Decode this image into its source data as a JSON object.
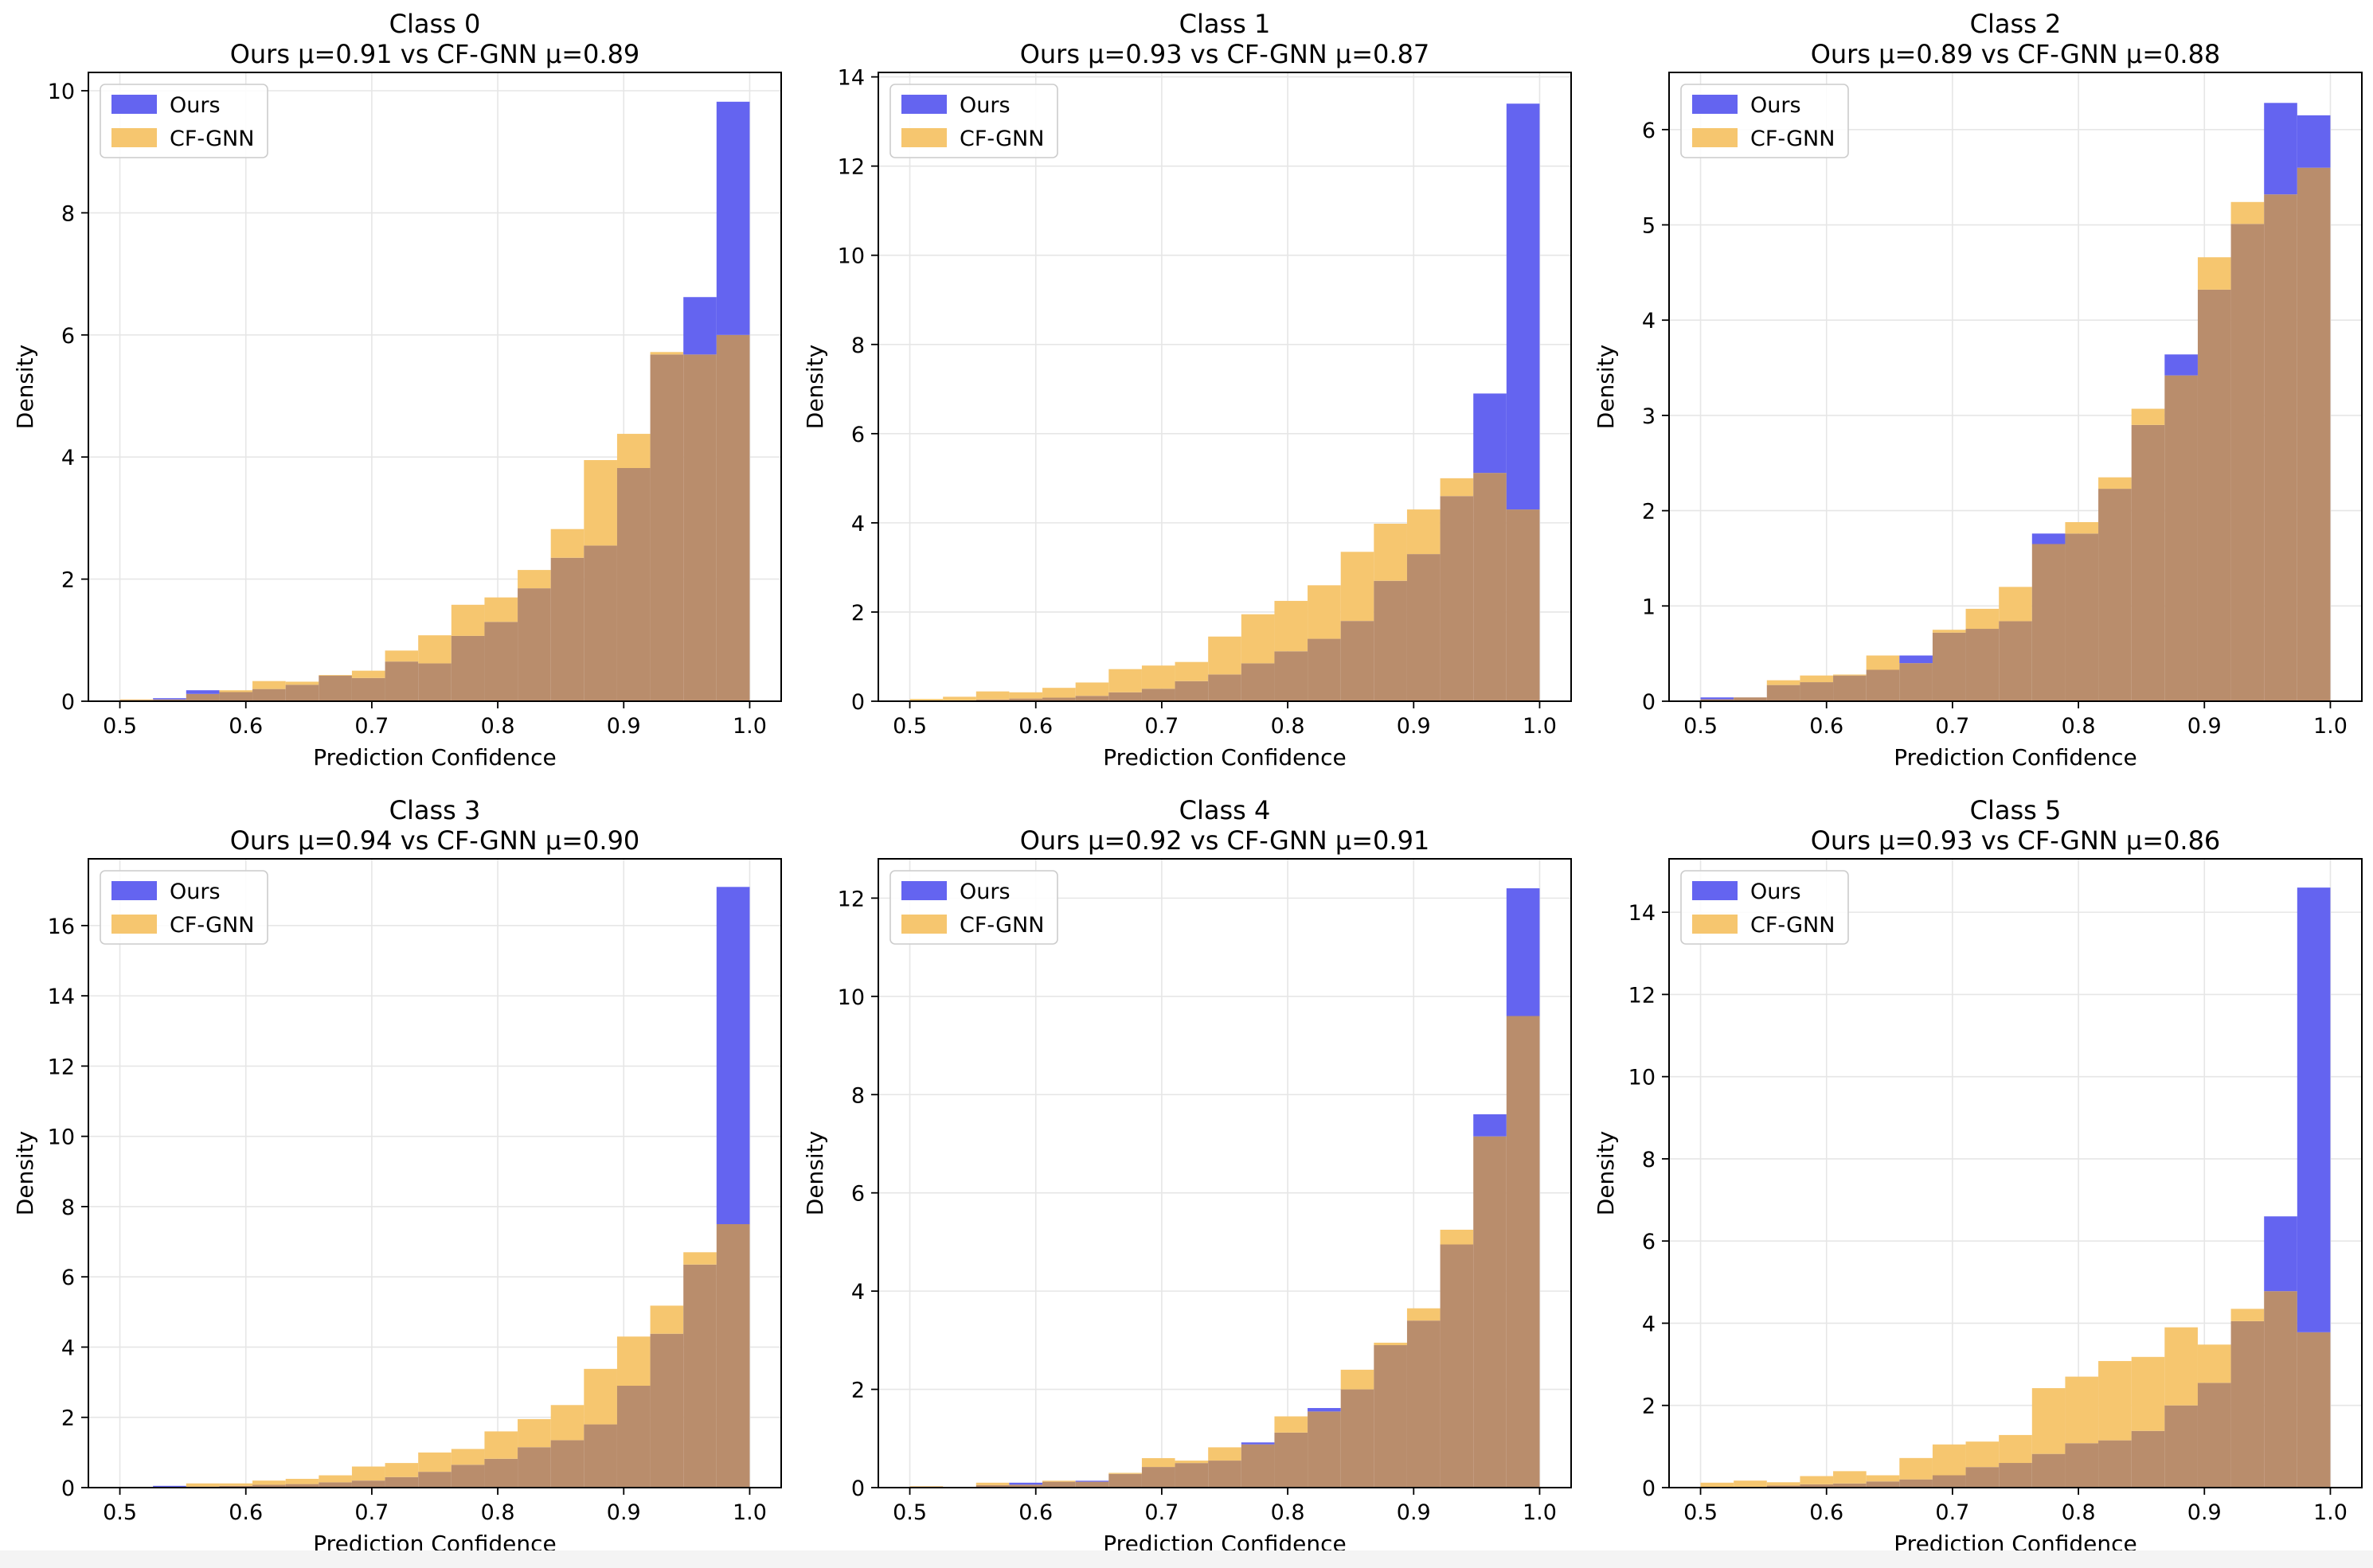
{
  "colors": {
    "ours": "#6464f0",
    "cfgnn": "#f6c66f",
    "overlap": "#b98d6c",
    "grid": "#e6e6e6"
  },
  "chart_data": [
    {
      "type": "bar",
      "title": "Class 0",
      "subtitle": "Ours μ=0.91 vs CF-GNN μ=0.89",
      "xlabel": "Prediction Confidence",
      "ylabel": "Density",
      "xlim": [
        0.475,
        1.025
      ],
      "ylim": [
        0,
        10.3
      ],
      "xticks": [
        "0.5",
        "0.6",
        "0.7",
        "0.8",
        "0.9",
        "1.0"
      ],
      "yticks": [
        "0",
        "2",
        "4",
        "6",
        "8",
        "10"
      ],
      "grid": true,
      "legend_position": "top-left",
      "bin_start": 0.5,
      "bin_width": 0.026316,
      "series": [
        {
          "name": "Ours",
          "values": [
            0.02,
            0.05,
            0.18,
            0.15,
            0.2,
            0.27,
            0.42,
            0.38,
            0.65,
            0.62,
            1.07,
            1.3,
            1.85,
            2.35,
            2.55,
            3.82,
            5.68,
            6.62,
            9.82
          ]
        },
        {
          "name": "CF-GNN",
          "values": [
            0.03,
            0.03,
            0.12,
            0.18,
            0.33,
            0.32,
            0.43,
            0.5,
            0.83,
            1.08,
            1.58,
            1.7,
            2.15,
            2.82,
            3.95,
            4.38,
            5.72,
            5.68,
            6.0
          ]
        }
      ]
    },
    {
      "type": "bar",
      "title": "Class 1",
      "subtitle": "Ours μ=0.93 vs CF-GNN μ=0.87",
      "xlabel": "Prediction Confidence",
      "ylabel": "Density",
      "xlim": [
        0.475,
        1.025
      ],
      "ylim": [
        0,
        14.1
      ],
      "xticks": [
        "0.5",
        "0.6",
        "0.7",
        "0.8",
        "0.9",
        "1.0"
      ],
      "yticks": [
        "0",
        "2",
        "4",
        "6",
        "8",
        "10",
        "12",
        "14"
      ],
      "grid": true,
      "legend_position": "top-left",
      "bin_start": 0.5,
      "bin_width": 0.026316,
      "series": [
        {
          "name": "Ours",
          "values": [
            0.0,
            0.02,
            0.04,
            0.06,
            0.08,
            0.12,
            0.2,
            0.28,
            0.45,
            0.6,
            0.85,
            1.12,
            1.4,
            1.8,
            2.7,
            3.3,
            4.6,
            6.9,
            13.4
          ]
        },
        {
          "name": "CF-GNN",
          "values": [
            0.05,
            0.1,
            0.22,
            0.2,
            0.3,
            0.42,
            0.72,
            0.8,
            0.88,
            1.45,
            1.95,
            2.25,
            2.6,
            3.35,
            3.98,
            4.3,
            5.0,
            5.12,
            4.3
          ]
        }
      ]
    },
    {
      "type": "bar",
      "title": "Class 2",
      "subtitle": "Ours μ=0.89 vs CF-GNN μ=0.88",
      "xlabel": "Prediction Confidence",
      "ylabel": "Density",
      "xlim": [
        0.475,
        1.025
      ],
      "ylim": [
        0,
        6.6
      ],
      "xticks": [
        "0.5",
        "0.6",
        "0.7",
        "0.8",
        "0.9",
        "1.0"
      ],
      "yticks": [
        "0",
        "1",
        "2",
        "3",
        "4",
        "5",
        "6"
      ],
      "grid": true,
      "legend_position": "top-left",
      "bin_start": 0.5,
      "bin_width": 0.026316,
      "series": [
        {
          "name": "Ours",
          "values": [
            0.04,
            0.04,
            0.17,
            0.2,
            0.27,
            0.33,
            0.48,
            0.72,
            0.76,
            0.84,
            1.76,
            1.76,
            2.23,
            2.9,
            3.64,
            4.32,
            5.01,
            6.28,
            6.15
          ]
        },
        {
          "name": "CF-GNN",
          "values": [
            0.02,
            0.04,
            0.22,
            0.27,
            0.28,
            0.48,
            0.4,
            0.75,
            0.97,
            1.2,
            1.65,
            1.88,
            2.35,
            3.07,
            3.42,
            4.66,
            5.24,
            5.32,
            5.6
          ]
        }
      ]
    },
    {
      "type": "bar",
      "title": "Class 3",
      "subtitle": "Ours μ=0.94 vs CF-GNN μ=0.90",
      "xlabel": "Prediction Confidence",
      "ylabel": "Density",
      "xlim": [
        0.475,
        1.025
      ],
      "ylim": [
        0,
        17.9
      ],
      "xticks": [
        "0.5",
        "0.6",
        "0.7",
        "0.8",
        "0.9",
        "1.0"
      ],
      "yticks": [
        "0",
        "2",
        "4",
        "6",
        "8",
        "10",
        "12",
        "14",
        "16"
      ],
      "grid": true,
      "legend_position": "top-left",
      "bin_start": 0.5,
      "bin_width": 0.026316,
      "series": [
        {
          "name": "Ours",
          "values": [
            0.0,
            0.05,
            0.03,
            0.05,
            0.08,
            0.1,
            0.15,
            0.2,
            0.3,
            0.45,
            0.65,
            0.82,
            1.15,
            1.35,
            1.8,
            2.9,
            4.38,
            6.35,
            17.1
          ]
        },
        {
          "name": "CF-GNN",
          "values": [
            0.0,
            0.02,
            0.12,
            0.12,
            0.2,
            0.25,
            0.35,
            0.6,
            0.7,
            1.0,
            1.1,
            1.6,
            1.95,
            2.35,
            3.38,
            4.3,
            5.18,
            6.7,
            7.5
          ]
        }
      ]
    },
    {
      "type": "bar",
      "title": "Class 4",
      "subtitle": "Ours μ=0.92 vs CF-GNN μ=0.91",
      "xlabel": "Prediction Confidence",
      "ylabel": "Density",
      "xlim": [
        0.475,
        1.025
      ],
      "ylim": [
        0,
        12.8
      ],
      "xticks": [
        "0.5",
        "0.6",
        "0.7",
        "0.8",
        "0.9",
        "1.0"
      ],
      "yticks": [
        "0",
        "2",
        "4",
        "6",
        "8",
        "10",
        "12"
      ],
      "grid": true,
      "legend_position": "top-left",
      "bin_start": 0.5,
      "bin_width": 0.026316,
      "series": [
        {
          "name": "Ours",
          "values": [
            0.02,
            0.0,
            0.05,
            0.1,
            0.12,
            0.14,
            0.28,
            0.42,
            0.5,
            0.55,
            0.92,
            1.12,
            1.62,
            2.0,
            2.9,
            3.4,
            4.95,
            7.6,
            12.2
          ]
        },
        {
          "name": "CF-GNN",
          "values": [
            0.03,
            0.0,
            0.1,
            0.06,
            0.14,
            0.12,
            0.3,
            0.6,
            0.55,
            0.82,
            0.88,
            1.45,
            1.55,
            2.4,
            2.95,
            3.65,
            5.25,
            7.15,
            9.6
          ]
        }
      ]
    },
    {
      "type": "bar",
      "title": "Class 5",
      "subtitle": "Ours μ=0.93 vs CF-GNN μ=0.86",
      "xlabel": "Prediction Confidence",
      "ylabel": "Density",
      "xlim": [
        0.475,
        1.025
      ],
      "ylim": [
        0,
        15.3
      ],
      "xticks": [
        "0.5",
        "0.6",
        "0.7",
        "0.8",
        "0.9",
        "1.0"
      ],
      "yticks": [
        "0",
        "2",
        "4",
        "6",
        "8",
        "10",
        "12",
        "14"
      ],
      "grid": true,
      "legend_position": "top-left",
      "bin_start": 0.5,
      "bin_width": 0.026316,
      "series": [
        {
          "name": "Ours",
          "values": [
            0.0,
            0.02,
            0.05,
            0.08,
            0.1,
            0.15,
            0.2,
            0.3,
            0.5,
            0.6,
            0.82,
            1.08,
            1.15,
            1.38,
            2.0,
            2.55,
            4.05,
            6.6,
            14.6
          ]
        },
        {
          "name": "CF-GNN",
          "values": [
            0.12,
            0.17,
            0.13,
            0.28,
            0.4,
            0.3,
            0.72,
            1.05,
            1.12,
            1.28,
            2.42,
            2.7,
            3.08,
            3.18,
            3.9,
            3.48,
            4.35,
            4.78,
            3.78
          ]
        }
      ]
    }
  ]
}
